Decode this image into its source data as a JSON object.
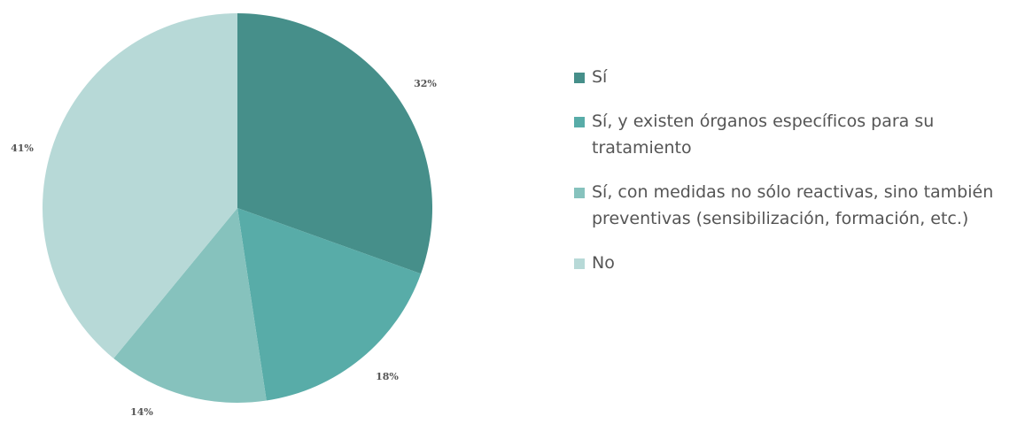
{
  "chart_data": {
    "type": "pie",
    "categories": [
      "Sí",
      "Sí, y existen órganos específicos para su tratamiento",
      "Sí, con medidas no sólo reactivas, sino también preventivas (sensibilización, formación, etc.)",
      "No"
    ],
    "values": [
      32,
      18,
      14,
      41
    ],
    "value_labels": [
      "32%",
      "18%",
      "14%",
      "41%"
    ],
    "colors": [
      "#468f8a",
      "#58aca8",
      "#86c2bd",
      "#b7d9d7"
    ],
    "legend": "right"
  }
}
